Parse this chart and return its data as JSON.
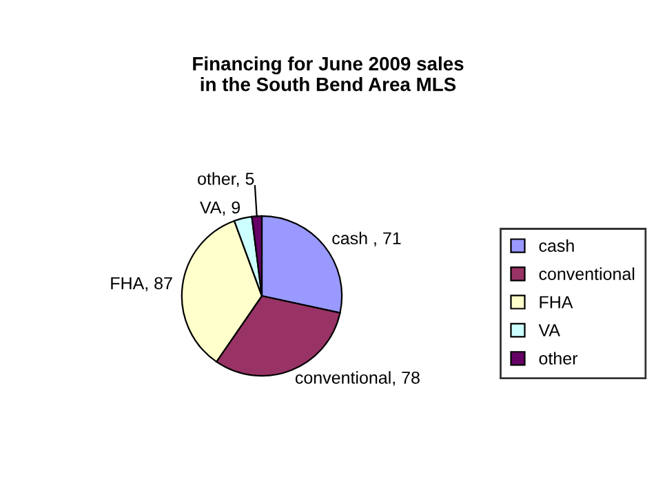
{
  "chart_data": {
    "type": "pie",
    "title": "Financing for June 2009 sales\nin the South Bend Area MLS",
    "categories": [
      "cash",
      "conventional",
      "FHA",
      "VA",
      "other"
    ],
    "values": [
      71,
      78,
      87,
      9,
      5
    ],
    "value_labels": [
      "cash , 71",
      "conventional, 78",
      "FHA, 87",
      "VA, 9",
      "other, 5"
    ],
    "colors": [
      "#9999ff",
      "#993366",
      "#ffffcc",
      "#ccffff",
      "#660066"
    ],
    "legend": "right"
  }
}
